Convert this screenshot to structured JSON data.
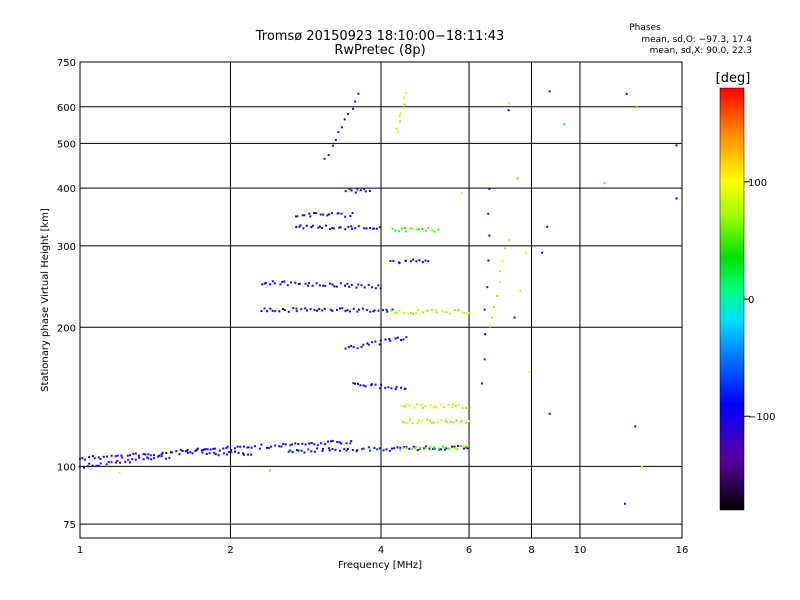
{
  "chart_data": {
    "type": "scatter",
    "title": "Tromsø 20150923 18:10:00−18:11:43",
    "subtitle": "RwPretec (8p)",
    "xlabel": "Frequency [MHz]",
    "ylabel": "Stationary phase Virtual Height [km]",
    "x_scale": "log",
    "y_scale": "log",
    "xlim": [
      1,
      16
    ],
    "ylim": [
      70,
      750
    ],
    "x_ticks": [
      "1",
      "2",
      "4",
      "6",
      "8",
      "10",
      "16"
    ],
    "x_tick_values": [
      1,
      2,
      4,
      6,
      8,
      10,
      16
    ],
    "y_ticks": [
      "75",
      "100",
      "200",
      "300",
      "400",
      "500",
      "600",
      "750"
    ],
    "y_tick_values": [
      75,
      100,
      200,
      300,
      400,
      500,
      600,
      750
    ],
    "grid": true,
    "phases_legend": {
      "title": "Phases",
      "line_o": "mean, sd,O:  −97.3, 17.4",
      "line_x": "mean, sd,X:   90.0, 22.3"
    },
    "colorbar": {
      "label": "[deg]",
      "range": [
        -180,
        180
      ],
      "tick_labels": [
        "100",
        "0",
        "−100"
      ],
      "tick_values": [
        100,
        0,
        -100
      ]
    },
    "traces": [
      {
        "f": [
          1.0,
          1.8
        ],
        "h": [
          104,
          108
        ],
        "phase": -110
      },
      {
        "f": [
          1.8,
          2.2
        ],
        "h": [
          106,
          107
        ],
        "phase": -100
      },
      {
        "f": [
          1.0,
          1.5
        ],
        "h": [
          100,
          105
        ],
        "phase": -110
      },
      {
        "f": [
          1.6,
          3.5
        ],
        "h": [
          108,
          113
        ],
        "phase": -100
      },
      {
        "f": [
          2.6,
          6.0
        ],
        "h": [
          108,
          110
        ],
        "phase": -95
      },
      {
        "f": [
          4.4,
          6.0
        ],
        "h": [
          109,
          110
        ],
        "phase": 80
      },
      {
        "f": [
          2.3,
          4.2
        ],
        "h": [
          218,
          218
        ],
        "phase": -100
      },
      {
        "f": [
          4.2,
          6.0
        ],
        "h": [
          216,
          216
        ],
        "phase": 95
      },
      {
        "f": [
          2.3,
          4.0
        ],
        "h": [
          250,
          245
        ],
        "phase": -100
      },
      {
        "f": [
          2.7,
          4.0
        ],
        "h": [
          330,
          328
        ],
        "phase": -100
      },
      {
        "f": [
          2.7,
          3.5
        ],
        "h": [
          350,
          350
        ],
        "phase": -100
      },
      {
        "f": [
          4.2,
          5.2
        ],
        "h": [
          325,
          325
        ],
        "phase": 70
      },
      {
        "f": [
          4.2,
          5.0
        ],
        "h": [
          278,
          278
        ],
        "phase": -100
      },
      {
        "f": [
          3.4,
          3.8
        ],
        "h": [
          395,
          395
        ],
        "phase": -100
      },
      {
        "f": [
          3.1,
          3.6
        ],
        "h": [
          460,
          640
        ],
        "phase": -100
      },
      {
        "f": [
          3.4,
          4.5
        ],
        "h": [
          180,
          190
        ],
        "phase": -100
      },
      {
        "f": [
          3.5,
          4.5
        ],
        "h": [
          150,
          148
        ],
        "phase": -100
      },
      {
        "f": [
          4.4,
          6.0
        ],
        "h": [
          125,
          125
        ],
        "phase": 95
      },
      {
        "f": [
          4.4,
          6.0
        ],
        "h": [
          135,
          135
        ],
        "phase": 100
      },
      {
        "f": [
          4.3,
          4.5
        ],
        "h": [
          530,
          640
        ],
        "phase": 95
      },
      {
        "f": [
          6.4,
          6.6
        ],
        "h": [
          150,
          400
        ],
        "phase": -90
      },
      {
        "f": [
          6.6,
          7.2
        ],
        "h": [
          200,
          310
        ],
        "phase": 110
      }
    ],
    "scatter": [
      {
        "f": 8.7,
        "h": 648,
        "phase": -100
      },
      {
        "f": 12.4,
        "h": 640,
        "phase": -100
      },
      {
        "f": 15.6,
        "h": 495,
        "phase": -100
      },
      {
        "f": 15.6,
        "h": 380,
        "phase": -100
      },
      {
        "f": 13.0,
        "h": 600,
        "phase": 140
      },
      {
        "f": 9.3,
        "h": 550,
        "phase": 40
      },
      {
        "f": 11.2,
        "h": 410,
        "phase": 70
      },
      {
        "f": 12.9,
        "h": 122,
        "phase": -100
      },
      {
        "f": 12.3,
        "h": 83,
        "phase": -100
      },
      {
        "f": 13.3,
        "h": 100,
        "phase": 100
      },
      {
        "f": 8.7,
        "h": 130,
        "phase": -100
      },
      {
        "f": 8.6,
        "h": 330,
        "phase": -100
      },
      {
        "f": 8.4,
        "h": 290,
        "phase": -100
      },
      {
        "f": 7.8,
        "h": 290,
        "phase": 100
      },
      {
        "f": 7.2,
        "h": 590,
        "phase": -100
      },
      {
        "f": 7.2,
        "h": 610,
        "phase": 100
      },
      {
        "f": 7.5,
        "h": 420,
        "phase": 130
      },
      {
        "f": 7.4,
        "h": 210,
        "phase": -100
      },
      {
        "f": 7.6,
        "h": 240,
        "phase": 120
      },
      {
        "f": 7.9,
        "h": 160,
        "phase": 110
      },
      {
        "f": 2.4,
        "h": 98,
        "phase": 130
      },
      {
        "f": 1.2,
        "h": 97,
        "phase": 110
      },
      {
        "f": 5.8,
        "h": 390,
        "phase": 110
      }
    ]
  }
}
